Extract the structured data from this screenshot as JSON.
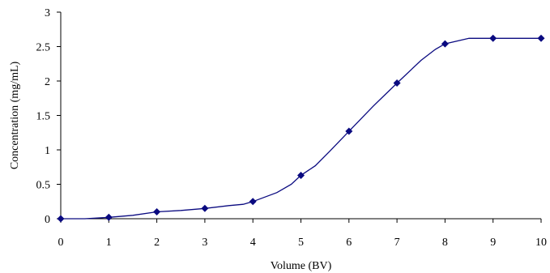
{
  "chart_data": {
    "type": "line",
    "title": "",
    "xlabel": "Volume (BV)",
    "ylabel": "Concentration (mg/mL)",
    "xlim": [
      0,
      10
    ],
    "ylim": [
      0,
      3
    ],
    "xticks": [
      0,
      1,
      2,
      3,
      4,
      5,
      6,
      7,
      8,
      9,
      10
    ],
    "yticks": [
      0,
      0.5,
      1,
      1.5,
      2,
      2.5,
      3
    ],
    "ytick_labels": [
      "0",
      "0.5",
      "1",
      "1.5",
      "2",
      "2.5",
      "3"
    ],
    "grid": false,
    "legend": "none",
    "line_color": "#0a0a80",
    "marker_color": "#0a0a80",
    "marker": "diamond",
    "series": [
      {
        "x": [
          0,
          1,
          2,
          3,
          4,
          5,
          6,
          7,
          8,
          9,
          10
        ],
        "values": [
          0,
          0.02,
          0.1,
          0.15,
          0.25,
          0.63,
          1.27,
          1.97,
          2.54,
          2.62,
          2.62
        ]
      }
    ],
    "curve": {
      "x": [
        0,
        0.5,
        1,
        1.5,
        2,
        2.5,
        3,
        3.5,
        3.8,
        4,
        4.5,
        4.8,
        5,
        5.3,
        5.6,
        6,
        6.5,
        7,
        7.5,
        7.8,
        8,
        8.5,
        9,
        9.5,
        10
      ],
      "y": [
        0,
        0,
        0.02,
        0.05,
        0.1,
        0.12,
        0.15,
        0.19,
        0.21,
        0.25,
        0.38,
        0.5,
        0.63,
        0.77,
        0.98,
        1.27,
        1.63,
        1.97,
        2.3,
        2.46,
        2.54,
        2.62,
        2.62,
        2.62,
        2.62
      ]
    }
  }
}
